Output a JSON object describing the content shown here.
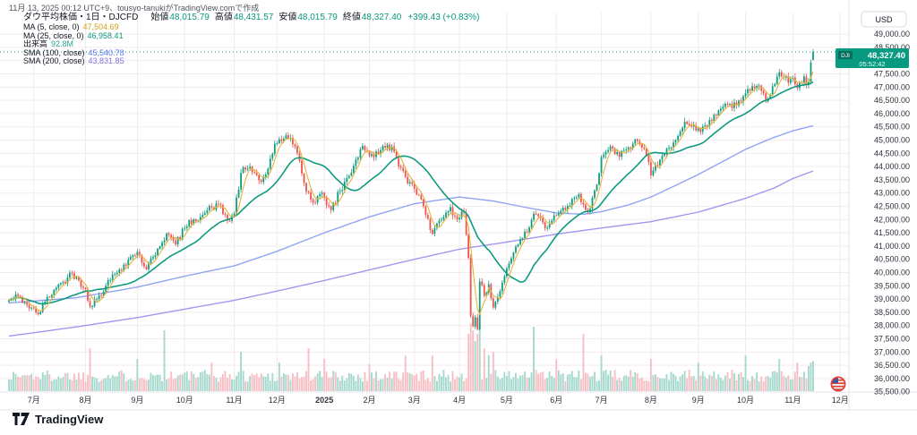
{
  "attribution": "11月 13, 2025 00:12 UTC+9、tousyo-tanukiがTradingView.comで作成",
  "header": {
    "title": "ダウ平均株価・1日・DJCFD",
    "open_label": "始値",
    "open": "48,015.79",
    "high_label": "高値",
    "high": "48,431.57",
    "low_label": "安値",
    "low": "48,015.79",
    "close_label": "終値",
    "close": "48,327.40",
    "change": "+399.43 (+0.83%)"
  },
  "legend": {
    "ma5": {
      "label": "MA (5, close, 0)",
      "value": "47,504.69"
    },
    "ma25": {
      "label": "MA (25, close, 0)",
      "value": "46,958.41"
    },
    "volume": {
      "label": "出来高",
      "value": "92.8M"
    },
    "sma100": {
      "label": "SMA (100, close)",
      "value": "45,540.78"
    },
    "sma200": {
      "label": "SMA (200, close)",
      "value": "43,831.85"
    }
  },
  "price_scale": {
    "currency": "USD"
  },
  "price_tag": {
    "symbol": "DJI",
    "price": "48,327.40",
    "countdown": "05:52:42"
  },
  "footer": {
    "logo_text": "TradingView"
  },
  "chart_data": {
    "type": "candlestick",
    "title": "ダウ平均株価・1日・DJCFD",
    "symbol": "DJI (DJCFD)",
    "timeframe": "1日",
    "bars_total": 358,
    "y_axis": {
      "min": 35500,
      "max": 49000,
      "step": 500,
      "currency": "USD"
    },
    "grid": true,
    "legend_position": "top-left",
    "x_ticks": [
      [
        "7月",
        11
      ],
      [
        "8月",
        34
      ],
      [
        "9月",
        57
      ],
      [
        "10月",
        78
      ],
      [
        "11月",
        100
      ],
      [
        "12月",
        119
      ],
      [
        "2025",
        140
      ],
      [
        "2月",
        160
      ],
      [
        "3月",
        180
      ],
      [
        "4月",
        200
      ],
      [
        "5月",
        221
      ],
      [
        "6月",
        243
      ],
      [
        "7月",
        263
      ],
      [
        "8月",
        285
      ],
      [
        "9月",
        306
      ],
      [
        "10月",
        327
      ],
      [
        "11月",
        348
      ],
      [
        "12月",
        369
      ]
    ],
    "last_bar": {
      "open": 48015.79,
      "high": 48431.57,
      "low": 48015.79,
      "close": 48327.4,
      "prev_close": 47927.97,
      "change": 399.43,
      "change_pct": 0.83
    },
    "overlays": {
      "ma5": {
        "period": 5,
        "current": 47504.69
      },
      "ma25": {
        "period": 25,
        "current": 46958.41
      },
      "sma100": {
        "period": 100,
        "current": 45540.78
      },
      "sma200": {
        "period": 200,
        "current": 43831.85
      },
      "volume_current": "92.8M"
    },
    "close_anchors": [
      [
        0,
        38950
      ],
      [
        4,
        39120
      ],
      [
        8,
        38780
      ],
      [
        13,
        38430
      ],
      [
        16,
        38900
      ],
      [
        20,
        39350
      ],
      [
        24,
        39650
      ],
      [
        28,
        39980
      ],
      [
        31,
        39700
      ],
      [
        34,
        39380
      ],
      [
        36,
        38720
      ],
      [
        39,
        39000
      ],
      [
        43,
        39500
      ],
      [
        47,
        39950
      ],
      [
        51,
        40300
      ],
      [
        55,
        40650
      ],
      [
        57,
        40780
      ],
      [
        61,
        40120
      ],
      [
        66,
        40900
      ],
      [
        70,
        41480
      ],
      [
        74,
        41060
      ],
      [
        78,
        41680
      ],
      [
        82,
        42010
      ],
      [
        86,
        42180
      ],
      [
        90,
        42460
      ],
      [
        93,
        42580
      ],
      [
        97,
        41960
      ],
      [
        100,
        42220
      ],
      [
        103,
        43760
      ],
      [
        106,
        43920
      ],
      [
        109,
        43760
      ],
      [
        112,
        43420
      ],
      [
        115,
        43920
      ],
      [
        118,
        44860
      ],
      [
        121,
        44960
      ],
      [
        124,
        45060
      ],
      [
        127,
        44760
      ],
      [
        129,
        44220
      ],
      [
        131,
        43380
      ],
      [
        134,
        42760
      ],
      [
        136,
        42640
      ],
      [
        138,
        42960
      ],
      [
        140,
        42820
      ],
      [
        143,
        42360
      ],
      [
        147,
        43080
      ],
      [
        151,
        43650
      ],
      [
        154,
        44260
      ],
      [
        157,
        44780
      ],
      [
        159,
        44560
      ],
      [
        162,
        44360
      ],
      [
        165,
        44620
      ],
      [
        168,
        44820
      ],
      [
        171,
        44560
      ],
      [
        174,
        43960
      ],
      [
        177,
        43360
      ],
      [
        180,
        43160
      ],
      [
        183,
        42760
      ],
      [
        186,
        42020
      ],
      [
        188,
        41460
      ],
      [
        191,
        41960
      ],
      [
        194,
        42260
      ],
      [
        196,
        42470
      ],
      [
        198,
        42120
      ],
      [
        200,
        42060
      ],
      [
        202,
        42260
      ],
      [
        204,
        40560
      ],
      [
        205,
        38360
      ],
      [
        206,
        37960
      ],
      [
        207,
        38310
      ],
      [
        208,
        37860
      ],
      [
        209,
        39660
      ],
      [
        211,
        39120
      ],
      [
        213,
        39560
      ],
      [
        215,
        38680
      ],
      [
        217,
        39080
      ],
      [
        219,
        39620
      ],
      [
        221,
        40160
      ],
      [
        224,
        40760
      ],
      [
        227,
        41260
      ],
      [
        230,
        41520
      ],
      [
        233,
        42220
      ],
      [
        236,
        42060
      ],
      [
        238,
        41670
      ],
      [
        240,
        41870
      ],
      [
        242,
        42160
      ],
      [
        245,
        42330
      ],
      [
        248,
        42520
      ],
      [
        251,
        42820
      ],
      [
        253,
        42960
      ],
      [
        255,
        42570
      ],
      [
        257,
        42280
      ],
      [
        259,
        42820
      ],
      [
        261,
        43320
      ],
      [
        263,
        44360
      ],
      [
        265,
        44560
      ],
      [
        267,
        44760
      ],
      [
        269,
        44470
      ],
      [
        271,
        44370
      ],
      [
        273,
        44620
      ],
      [
        275,
        44720
      ],
      [
        277,
        44860
      ],
      [
        279,
        44960
      ],
      [
        281,
        44710
      ],
      [
        283,
        44420
      ],
      [
        285,
        43670
      ],
      [
        287,
        44060
      ],
      [
        289,
        44260
      ],
      [
        291,
        44470
      ],
      [
        293,
        44710
      ],
      [
        295,
        44910
      ],
      [
        297,
        45160
      ],
      [
        299,
        45460
      ],
      [
        301,
        45610
      ],
      [
        303,
        45510
      ],
      [
        305,
        45360
      ],
      [
        307,
        45310
      ],
      [
        309,
        45560
      ],
      [
        311,
        45760
      ],
      [
        313,
        45960
      ],
      [
        315,
        46110
      ],
      [
        317,
        46260
      ],
      [
        319,
        46360
      ],
      [
        321,
        46210
      ],
      [
        323,
        46310
      ],
      [
        325,
        46460
      ],
      [
        327,
        46760
      ],
      [
        329,
        46860
      ],
      [
        331,
        46960
      ],
      [
        333,
        47060
      ],
      [
        335,
        46760
      ],
      [
        336,
        46460
      ],
      [
        338,
        46710
      ],
      [
        340,
        47110
      ],
      [
        342,
        47560
      ],
      [
        344,
        47360
      ],
      [
        346,
        47160
      ],
      [
        348,
        47360
      ],
      [
        350,
        46960
      ],
      [
        352,
        47160
      ],
      [
        353,
        47400
      ],
      [
        354,
        47100
      ],
      [
        355,
        47200
      ],
      [
        356,
        47927.97
      ],
      [
        357,
        48327.4
      ]
    ],
    "sma100_anchors": [
      [
        0,
        38850
      ],
      [
        30,
        39050
      ],
      [
        57,
        39450
      ],
      [
        80,
        39900
      ],
      [
        100,
        40250
      ],
      [
        119,
        40800
      ],
      [
        140,
        41500
      ],
      [
        160,
        42100
      ],
      [
        180,
        42600
      ],
      [
        200,
        42850
      ],
      [
        215,
        42700
      ],
      [
        230,
        42450
      ],
      [
        243,
        42250
      ],
      [
        255,
        42200
      ],
      [
        263,
        42300
      ],
      [
        275,
        42550
      ],
      [
        285,
        42850
      ],
      [
        295,
        43250
      ],
      [
        306,
        43700
      ],
      [
        316,
        44150
      ],
      [
        327,
        44650
      ],
      [
        338,
        45050
      ],
      [
        348,
        45350
      ],
      [
        357,
        45540.78
      ]
    ],
    "sma200_anchors": [
      [
        0,
        37600
      ],
      [
        30,
        37950
      ],
      [
        57,
        38300
      ],
      [
        80,
        38650
      ],
      [
        100,
        38950
      ],
      [
        119,
        39300
      ],
      [
        140,
        39700
      ],
      [
        160,
        40100
      ],
      [
        180,
        40500
      ],
      [
        200,
        40880
      ],
      [
        221,
        41150
      ],
      [
        243,
        41450
      ],
      [
        263,
        41680
      ],
      [
        285,
        41920
      ],
      [
        306,
        42280
      ],
      [
        327,
        42800
      ],
      [
        340,
        43200
      ],
      [
        348,
        43550
      ],
      [
        357,
        43831.85
      ]
    ],
    "volume_spikes": {
      "36": 0.6,
      "57": 0.45,
      "69": 0.85,
      "90": 0.4,
      "103": 0.55,
      "120": 0.4,
      "133": 0.6,
      "140": 0.45,
      "160": 0.38,
      "176": 0.5,
      "188": 0.5,
      "204": 0.8,
      "205": 0.95,
      "206": 0.85,
      "207": 0.7,
      "208": 0.8,
      "209": 0.9,
      "211": 0.6,
      "213": 0.5,
      "215": 0.55,
      "233": 0.9,
      "243": 0.45,
      "255": 0.8,
      "263": 0.5,
      "285": 0.45,
      "306": 0.4,
      "327": 0.5,
      "342": 0.45,
      "350": 0.4,
      "355": 0.35,
      "356": 0.4,
      "357": 0.42
    },
    "colors": {
      "up": "#0f9d80",
      "down": "#ee544e",
      "vol_up": "#a6d9ce",
      "vol_down": "#f7bfc3",
      "ma5": "#e5b43c",
      "ma25": "#0d9b7f",
      "sma100": "#8fa4f3",
      "sma200": "#a397ef",
      "accent": "#089981",
      "grid": "#f3eaee",
      "axis_text": "#2e323c",
      "border": "#e4e6ec"
    }
  }
}
